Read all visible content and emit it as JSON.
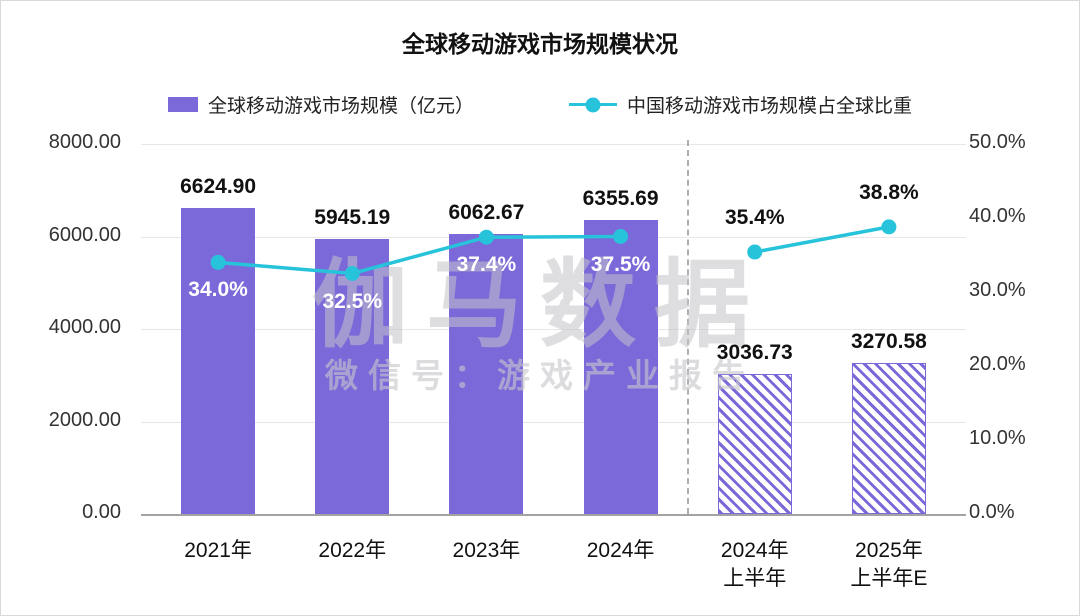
{
  "title": "全球移动游戏市场规模状况",
  "legend": [
    {
      "label": "全球移动游戏市场规模（亿元）",
      "type": "bar"
    },
    {
      "label": "中国移动游戏市场规模占全球比重",
      "type": "line"
    }
  ],
  "watermark": {
    "line1": "伽马数据",
    "line2": "微信号：游戏产业报告"
  },
  "colors": {
    "bar": "#7B68D9",
    "line": "#27C3DB",
    "grid": "#e7e7e7",
    "axis": "#a3a3a3",
    "separator": "#aeaeae",
    "text": "#111111",
    "label_on_bar": "#ffffff"
  },
  "chart_data": {
    "type": "bar+line",
    "title": "全球移动游戏市场规模状况",
    "categories": [
      [
        "2021年"
      ],
      [
        "2022年"
      ],
      [
        "2023年"
      ],
      [
        "2024年"
      ],
      [
        "2024年",
        "上半年"
      ],
      [
        "2025年",
        "上半年E"
      ]
    ],
    "series": [
      {
        "name": "全球移动游戏市场规模（亿元）",
        "type": "bar",
        "axis": "left",
        "values": [
          6624.9,
          5945.19,
          6062.67,
          6355.69,
          3036.73,
          3270.58
        ],
        "labels": [
          "6624.90",
          "5945.19",
          "6062.67",
          "6355.69",
          "3036.73",
          "3270.58"
        ],
        "hatched": [
          false,
          false,
          false,
          false,
          true,
          true
        ]
      },
      {
        "name": "中国移动游戏市场规模占全球比重",
        "type": "line",
        "axis": "right",
        "values": [
          34.0,
          32.5,
          37.4,
          37.5,
          35.4,
          38.8
        ],
        "labels": [
          "34.0%",
          "32.5%",
          "37.4%",
          "37.5%",
          "35.4%",
          "38.8%"
        ],
        "label_placement": [
          "below",
          "below",
          "below",
          "below",
          "above",
          "above"
        ],
        "segments": [
          [
            0,
            1,
            2,
            3
          ],
          [
            4,
            5
          ]
        ]
      }
    ],
    "left_axis": {
      "min": 0,
      "max": 8000,
      "ticks": [
        "8000.00",
        "6000.00",
        "4000.00",
        "2000.00",
        "0.00"
      ],
      "tick_values": [
        8000,
        6000,
        4000,
        2000,
        0
      ]
    },
    "right_axis": {
      "min": 0,
      "max": 50,
      "ticks": [
        "50.0%",
        "40.0%",
        "30.0%",
        "20.0%",
        "10.0%",
        "0.0%"
      ],
      "tick_values": [
        50,
        40,
        30,
        20,
        10,
        0
      ]
    },
    "separator_after_index": 3,
    "grid": true,
    "legend_position": "top"
  }
}
